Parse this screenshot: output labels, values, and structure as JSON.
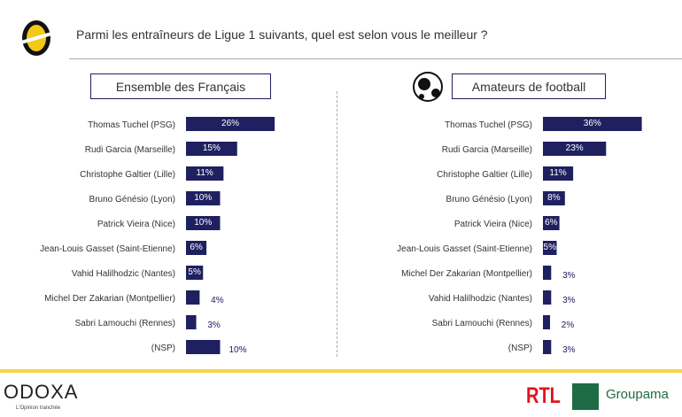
{
  "question": "Parmi les entraîneurs de Ligue 1 suivants, quel est selon vous le meilleur ?",
  "footer": {
    "brand": "ODOXA",
    "tagline": "L'Opinion tranchée",
    "partner1": "RTL",
    "partner2": "Groupama"
  },
  "colors": {
    "bar": "#1f2060",
    "footer_line": "#f5d44a"
  },
  "chart_data": [
    {
      "type": "bar",
      "orientation": "horizontal",
      "title": "Ensemble des Français",
      "categories": [
        "Thomas Tuchel (PSG)",
        "Rudi Garcia (Marseille)",
        "Christophe Galtier (Lille)",
        "Bruno Génésio (Lyon)",
        "Patrick Vieira (Nice)",
        "Jean-Louis Gasset (Saint-Etienne)",
        "Vahid Halilhodzic (Nantes)",
        "Michel Der Zakarian (Montpellier)",
        "Sabri Lamouchi (Rennes)",
        "(NSP)"
      ],
      "values": [
        26,
        15,
        11,
        10,
        10,
        6,
        5,
        4,
        3,
        10
      ],
      "labels": [
        "26%",
        "15%",
        "11%",
        "10%",
        "10%",
        "6%",
        "5%",
        "4%",
        "3%",
        "10%"
      ],
      "label_outside": [
        false,
        false,
        false,
        false,
        false,
        false,
        false,
        true,
        true,
        true
      ]
    },
    {
      "type": "bar",
      "orientation": "horizontal",
      "title": "Amateurs de football",
      "categories": [
        "Thomas Tuchel (PSG)",
        "Rudi Garcia (Marseille)",
        "Christophe Galtier (Lille)",
        "Bruno Génésio (Lyon)",
        "Patrick Vieira (Nice)",
        "Jean-Louis Gasset (Saint-Etienne)",
        "Michel Der Zakarian (Montpellier)",
        "Vahid Halilhodzic (Nantes)",
        "Sabri Lamouchi (Rennes)",
        "(NSP)"
      ],
      "values": [
        36,
        23,
        11,
        8,
        6,
        5,
        3,
        3,
        2,
        3
      ],
      "labels": [
        "36%",
        "23%",
        "11%",
        "8%",
        "6%",
        "5%",
        "3%",
        "3%",
        "2%",
        "3%"
      ],
      "label_outside": [
        false,
        false,
        false,
        false,
        false,
        false,
        true,
        true,
        true,
        true
      ]
    }
  ]
}
